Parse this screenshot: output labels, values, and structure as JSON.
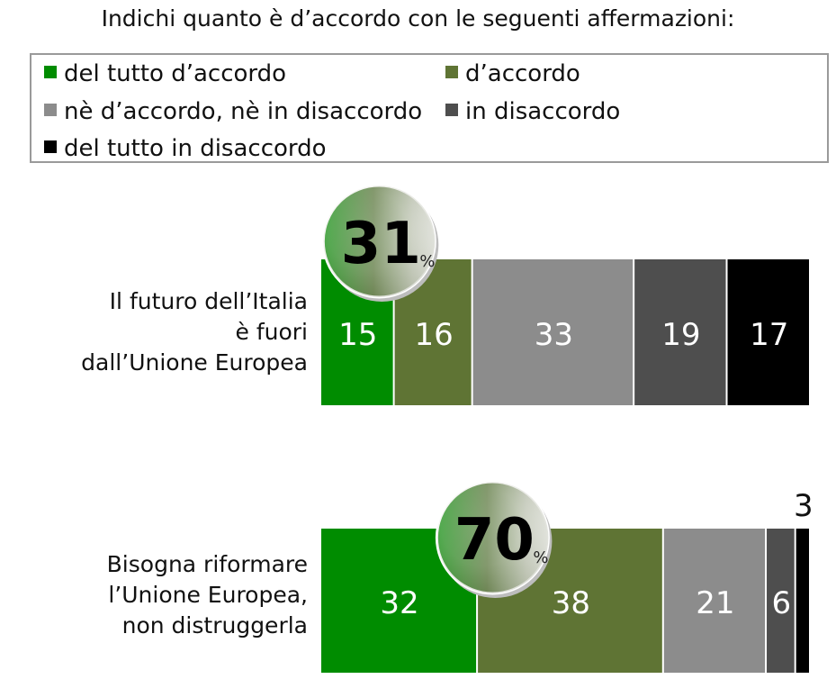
{
  "title": "Indichi quanto è d’accordo con le seguenti affermazioni:",
  "colors": {
    "del_tutto_accordo": "#008c00",
    "accordo": "#5f7434",
    "neutro": "#8c8c8c",
    "disaccordo": "#4e4e4e",
    "del_tutto_disaccordo": "#000000"
  },
  "legend": [
    {
      "label": "del tutto d’accordo",
      "color": "#008c00"
    },
    {
      "label": "d’accordo",
      "color": "#5f7434"
    },
    {
      "label": "nè d’accordo, nè in disaccordo",
      "color": "#8c8c8c"
    },
    {
      "label": "in disaccordo",
      "color": "#4e4e4e"
    },
    {
      "label": "del tutto in disaccordo",
      "color": "#000000"
    }
  ],
  "rows": [
    {
      "label_lines": [
        "Il futuro dell’Italia",
        "è fuori",
        "dall’Unione Europea"
      ],
      "badge_value": "31",
      "badge_unit": "%"
    },
    {
      "label_lines": [
        "Bisogna riformare",
        "l’Unione Europea,",
        "non distruggerla"
      ],
      "badge_value": "70",
      "badge_unit": "%"
    }
  ],
  "chart_data": {
    "type": "bar",
    "orientation": "horizontal",
    "stacked": true,
    "categories": [
      "Il futuro dell’Italia è fuori dall’Unione Europea",
      "Bisogna riformare l’Unione Europea, non distruggerla"
    ],
    "series": [
      {
        "name": "del tutto d’accordo",
        "color": "#008c00",
        "values": [
          15,
          32
        ]
      },
      {
        "name": "d’accordo",
        "color": "#5f7434",
        "values": [
          16,
          38
        ]
      },
      {
        "name": "nè d’accordo, nè in disaccordo",
        "color": "#8c8c8c",
        "values": [
          33,
          21
        ]
      },
      {
        "name": "in disaccordo",
        "color": "#4e4e4e",
        "values": [
          19,
          6
        ]
      },
      {
        "name": "del tutto in disaccordo",
        "color": "#000000",
        "values": [
          17,
          3
        ]
      }
    ],
    "totals_agree": [
      31,
      70
    ],
    "value_unit": "%",
    "legend_position": "top"
  }
}
